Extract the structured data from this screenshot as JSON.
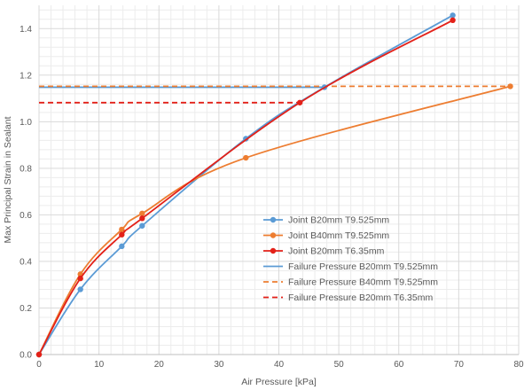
{
  "chart_data": {
    "type": "line",
    "title": "",
    "xlabel": "Air Pressure [kPa]",
    "ylabel": "Max Principal Strain in Sealant",
    "xlim": [
      0,
      80
    ],
    "ylim": [
      0,
      1.5
    ],
    "x_ticks": [
      0,
      10,
      20,
      30,
      40,
      50,
      60,
      70,
      80
    ],
    "y_ticks": [
      "0.0",
      "0.2",
      "0.4",
      "0.6",
      "0.8",
      "1.0",
      "1.2",
      "1.4"
    ],
    "grid": "both",
    "legend_position": "center-right",
    "series": [
      {
        "name": "Joint B20mm T9.525mm",
        "color": "#5B9BD5",
        "style": "solid-marker",
        "points": [
          [
            0,
            0
          ],
          [
            6.9,
            0.28
          ],
          [
            13.8,
            0.465
          ],
          [
            17.2,
            0.553
          ],
          [
            34.5,
            0.927
          ],
          [
            47.6,
            1.148
          ],
          [
            69,
            1.457
          ]
        ]
      },
      {
        "name": "Joint B40mm T9.525mm",
        "color": "#ED7D31",
        "style": "solid-marker",
        "points": [
          [
            0,
            0
          ],
          [
            6.9,
            0.345
          ],
          [
            13.8,
            0.537
          ],
          [
            17.2,
            0.606
          ],
          [
            34.5,
            0.845
          ],
          [
            78.6,
            1.152
          ]
        ]
      },
      {
        "name": "Joint B20mm T6.35mm",
        "color": "#E32119",
        "style": "solid-marker",
        "points": [
          [
            0,
            0
          ],
          [
            6.9,
            0.327
          ],
          [
            13.8,
            0.515
          ],
          [
            17.2,
            0.585
          ],
          [
            43.5,
            1.082
          ],
          [
            69,
            1.436
          ]
        ]
      },
      {
        "name": "Failure Pressure B20mm T9.525mm",
        "color": "#5B9BD5",
        "style": "solid",
        "points": [
          [
            0,
            1.148
          ],
          [
            47.6,
            1.148
          ]
        ]
      },
      {
        "name": "Failure Pressure B40mm T9.525mm",
        "color": "#ED7D31",
        "style": "dashed",
        "points": [
          [
            0,
            1.152
          ],
          [
            78.6,
            1.152
          ]
        ]
      },
      {
        "name": "Failure Pressure B20mm T6.35mm",
        "color": "#E32119",
        "style": "dashed",
        "points": [
          [
            0,
            1.082
          ],
          [
            43.5,
            1.082
          ]
        ]
      }
    ]
  }
}
